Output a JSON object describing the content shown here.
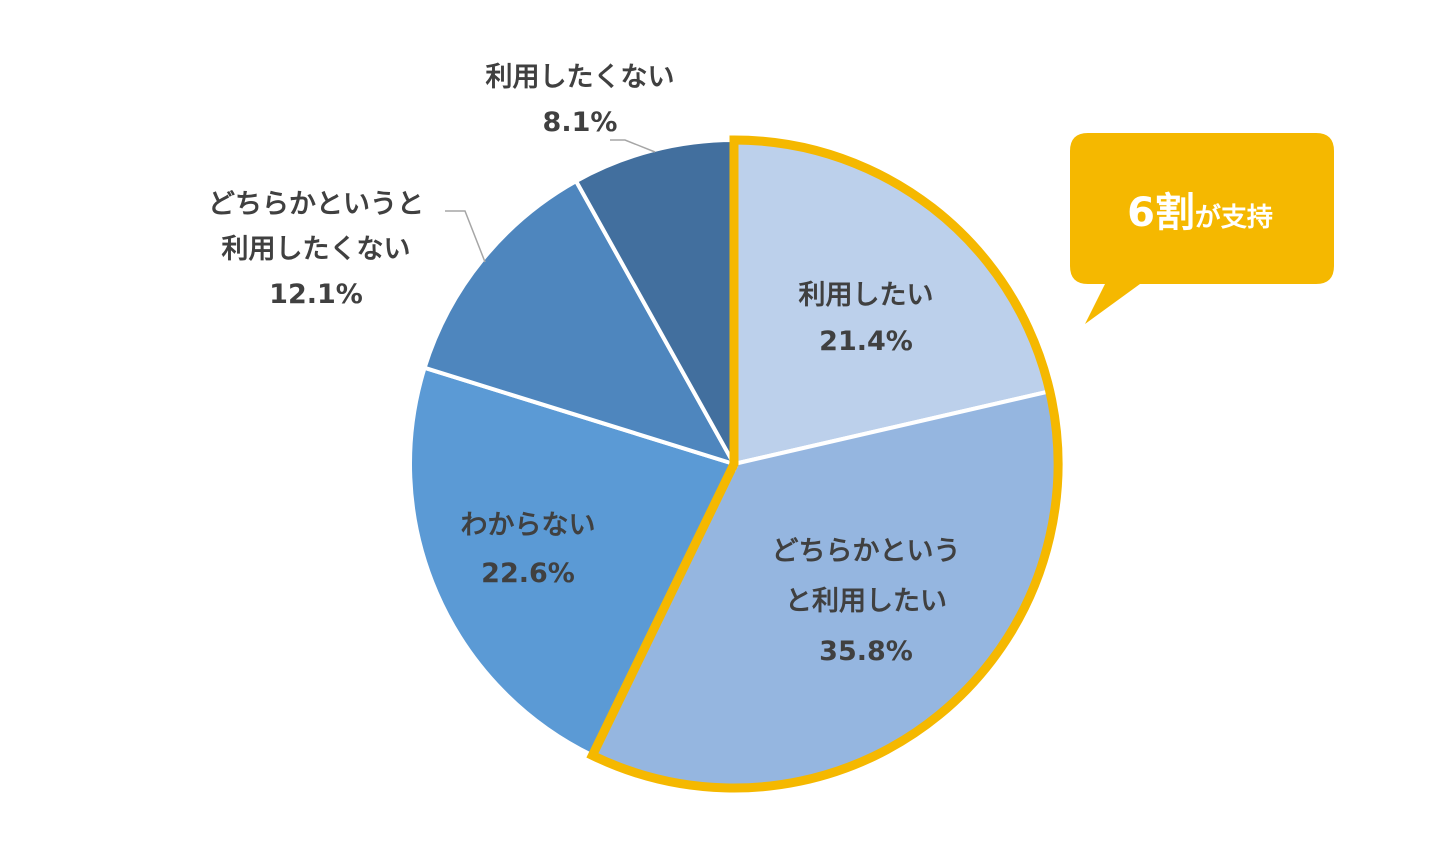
{
  "chart_data": {
    "type": "pie",
    "start_angle_deg": 0,
    "direction": "clockwise",
    "slices": [
      {
        "label": "利用したい",
        "label_lines": [
          "利用したい"
        ],
        "value": 21.4,
        "value_label": "21.4%",
        "color": "#BCD0EB",
        "label_position": "inside"
      },
      {
        "label": "どちらかというと利用したい",
        "label_lines": [
          "どちらかという",
          "と利用したい"
        ],
        "value": 35.8,
        "value_label": "35.8%",
        "color": "#95B6E0",
        "label_position": "inside"
      },
      {
        "label": "わからない",
        "label_lines": [
          "わからない"
        ],
        "value": 22.6,
        "value_label": "22.6%",
        "color": "#5B9AD5",
        "label_position": "inside"
      },
      {
        "label": "どちらかというと利用したくない",
        "label_lines": [
          "どちらかというと",
          "利用したくない"
        ],
        "value": 12.1,
        "value_label": "12.1%",
        "color": "#4E86BE",
        "label_position": "outside"
      },
      {
        "label": "利用したくない",
        "label_lines": [
          "利用したくない"
        ],
        "value": 8.1,
        "value_label": "8.1%",
        "color": "#426F9E",
        "label_position": "outside"
      }
    ],
    "highlight": {
      "slices": [
        0,
        1
      ],
      "color": "#F5B800"
    },
    "callout": {
      "big": "6割",
      "small": "が支持",
      "color": "#F5B800"
    }
  }
}
